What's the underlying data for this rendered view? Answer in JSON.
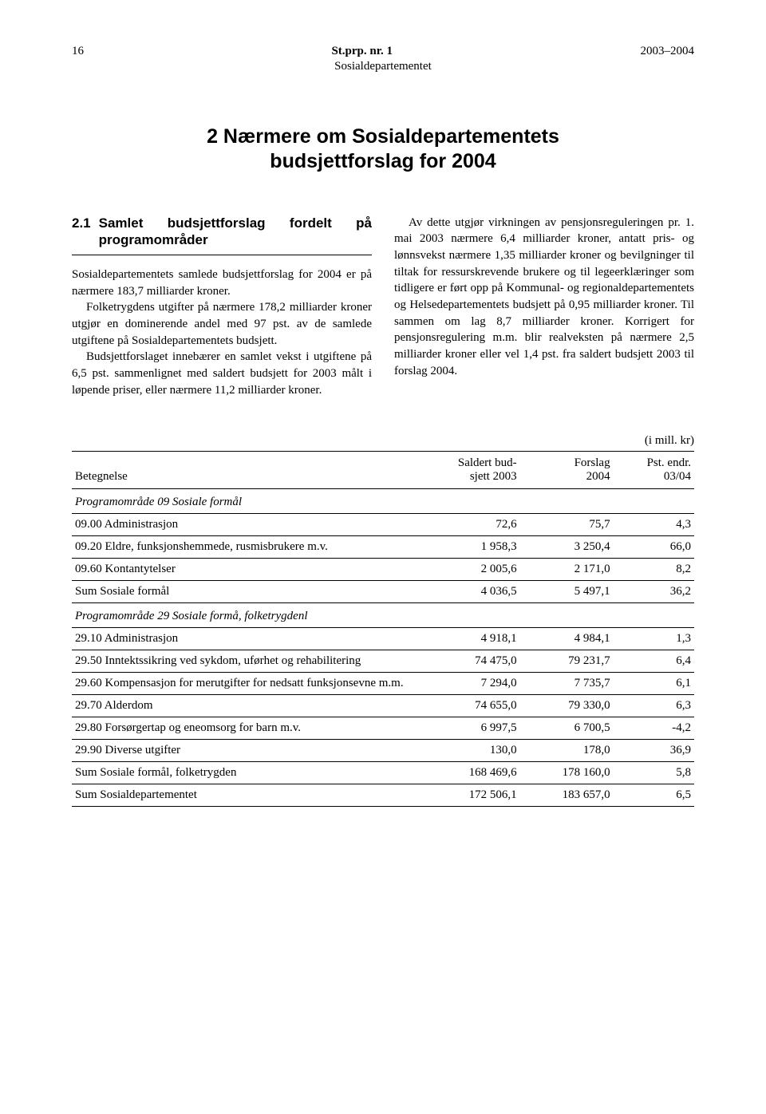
{
  "header": {
    "page_number": "16",
    "doc_ref": "St.prp. nr. 1",
    "year_range": "2003–2004",
    "department": "Sosialdepartementet"
  },
  "chapter": {
    "number": "2",
    "title_line1": "2   Nærmere om Sosialdepartementets",
    "title_line2": "budsjettforslag for  2004"
  },
  "section": {
    "number": "2.1",
    "title": "Samlet budsjettforslag fordelt på programområder"
  },
  "left_col": {
    "p1": "Sosialdepartementets samlede budsjettforslag for 2004 er på nærmere 183,7 milliarder kroner.",
    "p2": "Folketrygdens utgifter på nærmere 178,2 milliarder kroner utgjør en dominerende andel med 97 pst. av de samlede utgiftene på Sosialdepartementets budsjett.",
    "p3": "Budsjettforslaget innebærer en samlet vekst i utgiftene på 6,5 pst. sammenlignet med saldert budsjett for 2003 målt i løpende priser, eller nærmere 11,2 milliarder kroner."
  },
  "right_col": {
    "p1": "Av dette utgjør virkningen av pensjonsreguleringen pr. 1. mai 2003 nærmere 6,4 milliarder kroner, antatt pris- og lønnsvekst nærmere 1,35 milliarder kroner og bevilgninger til tiltak for ressurskrevende brukere og til legeerklæringer som tidligere er ført opp på Kommunal- og regionaldepartementets og Helsedepartementets budsjett på 0,95 milliarder kroner. Til sammen om lag 8,7 milliarder kroner. Korrigert for pensjonsregulering m.m. blir realveksten på nærmere 2,5 milliarder kroner eller vel 1,4 pst. fra saldert budsjett 2003 til forslag 2004."
  },
  "table": {
    "unit": "(i mill. kr)",
    "columns": {
      "c0": "Betegnelse",
      "c1a": "Saldert bud-",
      "c1b": "sjett 2003",
      "c2a": "Forslag",
      "c2b": "2004",
      "c3a": "Pst. endr.",
      "c3b": "03/04"
    },
    "section1": "Programområde 09 Sosiale formål",
    "rows1": [
      {
        "label": "09.00 Administrasjon",
        "v1": "72,6",
        "v2": "75,7",
        "v3": "4,3"
      },
      {
        "label": "09.20 Eldre, funksjonshemmede, rusmisbrukere m.v.",
        "v1": "1 958,3",
        "v2": "3 250,4",
        "v3": "66,0"
      },
      {
        "label": "09.60 Kontantytelser",
        "v1": "2 005,6",
        "v2": "2 171,0",
        "v3": "8,2"
      }
    ],
    "sum1": {
      "label": "Sum Sosiale formål",
      "v1": "4 036,5",
      "v2": "5 497,1",
      "v3": "36,2"
    },
    "section2": "Programområde 29 Sosiale formå, folketrygdenl",
    "rows2": [
      {
        "label": "29.10 Administrasjon",
        "v1": "4 918,1",
        "v2": "4 984,1",
        "v3": "1,3"
      },
      {
        "label": "29.50 Inntektssikring ved sykdom, uførhet og rehabilitering",
        "v1": "74 475,0",
        "v2": "79 231,7",
        "v3": "6,4"
      },
      {
        "label": "29.60 Kompensasjon for merutgifter for nedsatt funksjonsevne m.m.",
        "v1": "7 294,0",
        "v2": "7 735,7",
        "v3": "6,1"
      },
      {
        "label": "29.70 Alderdom",
        "v1": "74 655,0",
        "v2": "79 330,0",
        "v3": "6,3"
      },
      {
        "label": "29.80 Forsørgertap og eneomsorg for barn m.v.",
        "v1": "6 997,5",
        "v2": "6 700,5",
        "v3": "-4,2"
      },
      {
        "label": "29.90 Diverse utgifter",
        "v1": "130,0",
        "v2": "178,0",
        "v3": "36,9"
      }
    ],
    "sum2": {
      "label": "Sum Sosiale formål, folketrygden",
      "v1": "168 469,6",
      "v2": "178 160,0",
      "v3": "5,8"
    },
    "total": {
      "label": "Sum Sosialdepartementet",
      "v1": "172 506,1",
      "v2": "183 657,0",
      "v3": "6,5"
    }
  }
}
